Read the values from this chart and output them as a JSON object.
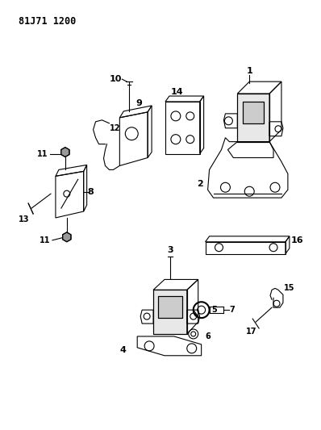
{
  "title": "81J71 1200",
  "bg": "#ffffff",
  "lc": "#000000",
  "lw": 0.8
}
